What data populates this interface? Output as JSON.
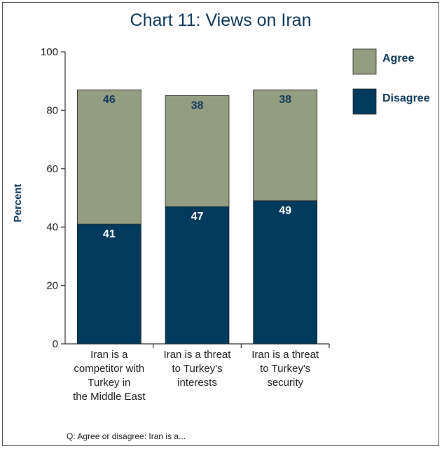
{
  "chart_data": {
    "type": "bar",
    "stacked": true,
    "title": "Chart 11: Views on Iran",
    "ylabel": "Percent",
    "xlabel": "",
    "ylim": [
      0,
      100
    ],
    "yticks": [
      0,
      20,
      40,
      60,
      80,
      100
    ],
    "categories": [
      [
        "Iran is a",
        "competitor with",
        "Turkey in",
        "the Middle East"
      ],
      [
        "Iran is a threat",
        "to Turkey's",
        "interests"
      ],
      [
        "Iran is a threat",
        "to Turkey's",
        "security"
      ]
    ],
    "series": [
      {
        "name": "Disagree",
        "values": [
          41,
          47,
          49
        ],
        "color": "#003a5d",
        "label_color": "#ffffff"
      },
      {
        "name": "Agree",
        "values": [
          46,
          38,
          38
        ],
        "color": "#939d80",
        "label_color": "#0e3a5c"
      }
    ],
    "legend": {
      "placement": "right",
      "entries": [
        {
          "name": "Agree",
          "color": "#939d80"
        },
        {
          "name": "Disagree",
          "color": "#003a5d"
        }
      ]
    },
    "note": "Q: Agree or disagree: Iran is a..."
  }
}
